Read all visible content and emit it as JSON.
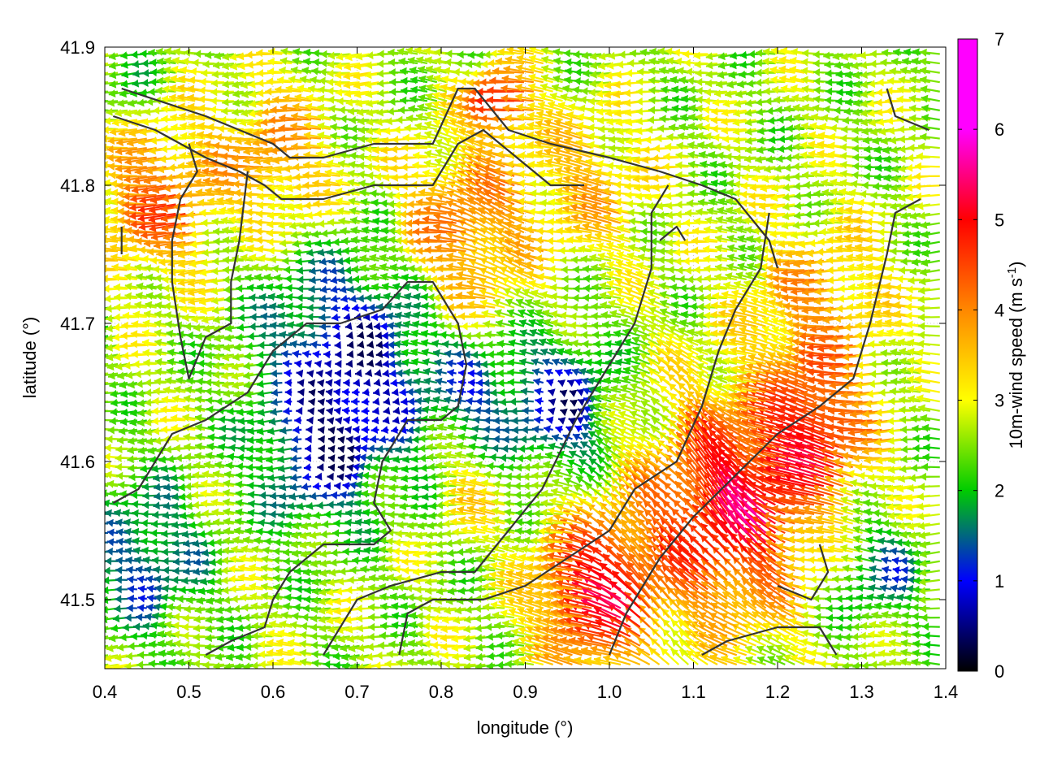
{
  "chart_data": {
    "type": "vector-field",
    "xlabel": "longitude (°)",
    "ylabel": "latitude (°)",
    "xlim": [
      0.4,
      1.4
    ],
    "ylim": [
      41.45,
      41.9
    ],
    "xticks": [
      "0.4",
      "0.5",
      "0.6",
      "0.7",
      "0.8",
      "0.9",
      "1.0",
      "1.1",
      "1.2",
      "1.3",
      "1.4"
    ],
    "yticks": [
      "41.5",
      "41.6",
      "41.7",
      "41.8",
      "41.9"
    ],
    "grid": true,
    "colorbar": {
      "label": "10m-wind speed (m s-1)",
      "label_main": "10m-wind speed (m s",
      "label_sup": "-1",
      "label_end": ")",
      "min": 0,
      "max": 7,
      "ticks": [
        "0",
        "1",
        "2",
        "3",
        "4",
        "5",
        "6",
        "7"
      ],
      "colors": [
        "#000000",
        "#0000ff",
        "#00cc00",
        "#ffff00",
        "#ff8800",
        "#ff0000",
        "#ff00ff"
      ]
    },
    "contour_lines": [
      [
        [
          0.42,
          41.87
        ],
        [
          0.52,
          41.85
        ],
        [
          0.56,
          41.84
        ],
        [
          0.6,
          41.83
        ],
        [
          0.62,
          41.82
        ],
        [
          0.66,
          41.82
        ],
        [
          0.72,
          41.83
        ],
        [
          0.79,
          41.83
        ],
        [
          0.82,
          41.87
        ],
        [
          0.84,
          41.87
        ],
        [
          0.88,
          41.84
        ],
        [
          0.93,
          41.83
        ],
        [
          1.0,
          41.82
        ],
        [
          1.06,
          41.81
        ],
        [
          1.11,
          41.8
        ],
        [
          1.15,
          41.79
        ],
        [
          1.19,
          41.76
        ],
        [
          1.2,
          41.74
        ]
      ],
      [
        [
          0.41,
          41.85
        ],
        [
          0.46,
          41.84
        ],
        [
          0.52,
          41.82
        ],
        [
          0.56,
          41.81
        ],
        [
          0.59,
          41.8
        ],
        [
          0.61,
          41.79
        ],
        [
          0.66,
          41.79
        ],
        [
          0.72,
          41.8
        ],
        [
          0.76,
          41.8
        ],
        [
          0.79,
          41.8
        ],
        [
          0.82,
          41.83
        ],
        [
          0.85,
          41.84
        ],
        [
          0.89,
          41.82
        ],
        [
          0.93,
          41.8
        ],
        [
          0.97,
          41.8
        ]
      ],
      [
        [
          0.57,
          41.81
        ],
        [
          0.56,
          41.76
        ],
        [
          0.55,
          41.73
        ],
        [
          0.55,
          41.7
        ],
        [
          0.52,
          41.69
        ],
        [
          0.5,
          41.66
        ],
        [
          0.49,
          41.69
        ],
        [
          0.48,
          41.73
        ],
        [
          0.48,
          41.76
        ],
        [
          0.49,
          41.79
        ],
        [
          0.51,
          41.81
        ],
        [
          0.5,
          41.83
        ]
      ],
      [
        [
          0.41,
          41.57
        ],
        [
          0.44,
          41.58
        ],
        [
          0.48,
          41.62
        ],
        [
          0.52,
          41.63
        ],
        [
          0.57,
          41.65
        ],
        [
          0.6,
          41.68
        ],
        [
          0.64,
          41.7
        ],
        [
          0.68,
          41.7
        ],
        [
          0.73,
          41.71
        ],
        [
          0.76,
          41.73
        ],
        [
          0.79,
          41.73
        ],
        [
          0.82,
          41.7
        ],
        [
          0.83,
          41.67
        ],
        [
          0.82,
          41.64
        ],
        [
          0.8,
          41.63
        ],
        [
          0.76,
          41.63
        ],
        [
          0.73,
          41.6
        ],
        [
          0.72,
          41.57
        ],
        [
          0.74,
          41.55
        ],
        [
          0.72,
          41.54
        ],
        [
          0.66,
          41.54
        ],
        [
          0.62,
          41.52
        ],
        [
          0.6,
          41.5
        ],
        [
          0.59,
          41.48
        ],
        [
          0.55,
          41.47
        ],
        [
          0.52,
          41.46
        ]
      ],
      [
        [
          0.66,
          41.46
        ],
        [
          0.7,
          41.5
        ],
        [
          0.74,
          41.51
        ],
        [
          0.8,
          41.52
        ],
        [
          0.84,
          41.52
        ],
        [
          0.88,
          41.55
        ],
        [
          0.92,
          41.58
        ],
        [
          0.96,
          41.63
        ],
        [
          0.99,
          41.66
        ],
        [
          1.01,
          41.68
        ],
        [
          1.03,
          41.7
        ],
        [
          1.05,
          41.74
        ],
        [
          1.05,
          41.78
        ],
        [
          1.07,
          41.8
        ]
      ],
      [
        [
          0.75,
          41.46
        ],
        [
          0.76,
          41.49
        ],
        [
          0.79,
          41.5
        ],
        [
          0.85,
          41.5
        ],
        [
          0.9,
          41.51
        ],
        [
          0.95,
          41.53
        ],
        [
          1.0,
          41.55
        ],
        [
          1.03,
          41.58
        ],
        [
          1.08,
          41.6
        ],
        [
          1.11,
          41.64
        ],
        [
          1.13,
          41.68
        ],
        [
          1.15,
          41.71
        ],
        [
          1.18,
          41.74
        ],
        [
          1.19,
          41.78
        ]
      ],
      [
        [
          1.0,
          41.46
        ],
        [
          1.02,
          41.49
        ],
        [
          1.06,
          41.53
        ],
        [
          1.1,
          41.56
        ],
        [
          1.15,
          41.59
        ],
        [
          1.2,
          41.62
        ],
        [
          1.25,
          41.64
        ],
        [
          1.29,
          41.66
        ],
        [
          1.31,
          41.7
        ],
        [
          1.33,
          41.75
        ],
        [
          1.34,
          41.78
        ],
        [
          1.37,
          41.79
        ]
      ],
      [
        [
          1.11,
          41.46
        ],
        [
          1.14,
          41.47
        ],
        [
          1.2,
          41.48
        ],
        [
          1.25,
          41.48
        ],
        [
          1.27,
          41.46
        ]
      ],
      [
        [
          1.2,
          41.51
        ],
        [
          1.24,
          41.5
        ],
        [
          1.26,
          41.52
        ],
        [
          1.25,
          41.54
        ]
      ],
      [
        [
          1.06,
          41.76
        ],
        [
          1.08,
          41.77
        ],
        [
          1.09,
          41.76
        ]
      ],
      [
        [
          0.42,
          41.77
        ],
        [
          0.42,
          41.75
        ]
      ],
      [
        [
          1.33,
          41.87
        ],
        [
          1.34,
          41.85
        ],
        [
          1.38,
          41.84
        ]
      ]
    ]
  }
}
